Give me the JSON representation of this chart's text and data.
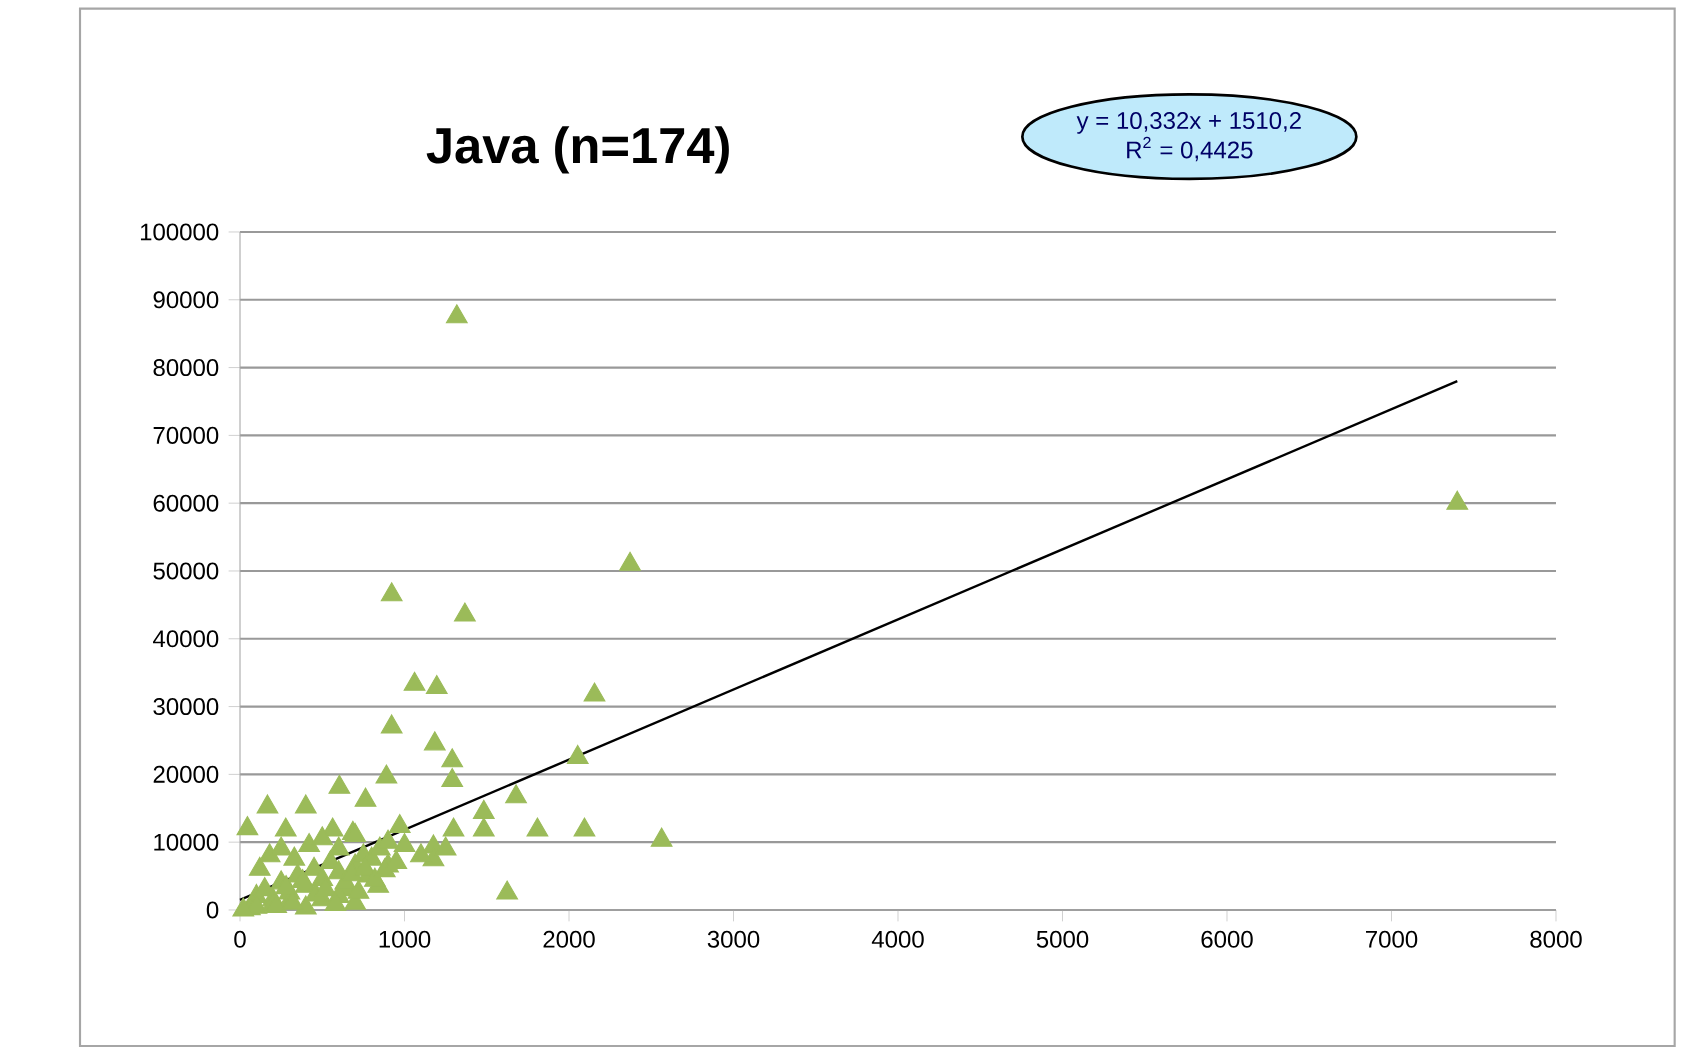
{
  "chart_data": {
    "type": "scatter",
    "title": "Java (n=174)",
    "annotations": [
      "y = 10,332x + 1510,2",
      "R$^{2}$ = 0,4425"
    ],
    "xlim": [
      0,
      8000
    ],
    "xticks": [
      0,
      1000,
      2000,
      3000,
      4000,
      5000,
      6000,
      7000,
      8000
    ],
    "ylim": [
      0,
      100000
    ],
    "yticks": [
      0,
      10000,
      20000,
      30000,
      40000,
      50000,
      60000,
      70000,
      80000,
      90000,
      100000
    ],
    "grid": "y",
    "marker": "triangle",
    "series": [
      {
        "color": "#9bbb59",
        "x": [
          1318,
          7400,
          2371,
          922,
          1367,
          1061,
          1196,
          2155,
          922,
          1184,
          2053,
          1290,
          1290,
          890,
          604,
          763,
          1678,
          1482,
          167,
          400,
          45,
          1808,
          2094,
          2563,
          1624,
          1482,
          1298,
          1176,
          1176,
          971,
          563,
          278,
          686,
          100,
          150,
          200,
          250,
          300,
          350,
          400,
          450,
          500,
          550,
          600,
          650,
          700,
          750,
          800,
          850,
          900,
          120,
          180,
          250,
          330,
          420,
          500,
          600,
          700,
          780,
          840,
          60,
          100,
          200,
          300,
          400,
          500,
          600,
          700,
          900,
          1000,
          1100,
          1250,
          20,
          220,
          280,
          320,
          380,
          460,
          520,
          580,
          640,
          680,
          720,
          760,
          820,
          880,
          950
        ],
        "values": [
          87500,
          60000,
          51000,
          46500,
          43500,
          33300,
          32800,
          31700,
          27000,
          24500,
          22500,
          22000,
          19100,
          19600,
          18100,
          16200,
          16700,
          14400,
          15200,
          15200,
          12000,
          11800,
          11800,
          10300,
          2500,
          11800,
          11800,
          9300,
          7400,
          12300,
          11800,
          11800,
          11300,
          2000,
          3000,
          1500,
          4000,
          2500,
          5000,
          3500,
          6000,
          4500,
          7000,
          5500,
          3000,
          6500,
          8000,
          7500,
          9000,
          10000,
          6000,
          8000,
          9000,
          7500,
          9500,
          10500,
          9000,
          11000,
          5000,
          3500,
          200,
          400,
          800,
          1200,
          300,
          1500,
          2000,
          1000,
          6500,
          9500,
          8000,
          9000,
          0,
          500,
          3300,
          1000,
          4200,
          2200,
          3000,
          800,
          4000,
          5200,
          2600,
          6000,
          4400,
          5800,
          7000
        ]
      },
      {
        "type": "line",
        "marker": "none",
        "color": "#000000",
        "x": [
          0,
          7400
        ],
        "values": [
          1500,
          78000
        ]
      }
    ]
  }
}
